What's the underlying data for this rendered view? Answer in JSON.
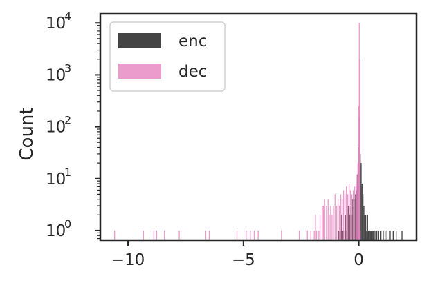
{
  "chart_data": {
    "type": "histogram",
    "title": "",
    "xlabel": "",
    "ylabel": "Count",
    "xscale": "linear",
    "yscale": "log",
    "xlim": [
      -11.2,
      2.5
    ],
    "ylim": [
      0.65,
      15000
    ],
    "x_ticks": [
      {
        "value": -10,
        "label": "−10"
      },
      {
        "value": -5,
        "label": "−5"
      },
      {
        "value": 0,
        "label": "0"
      }
    ],
    "y_ticks": [
      {
        "value": 1,
        "base": "10",
        "exp": "0"
      },
      {
        "value": 10,
        "base": "10",
        "exp": "1"
      },
      {
        "value": 100,
        "base": "10",
        "exp": "2"
      },
      {
        "value": 1000,
        "base": "10",
        "exp": "3"
      },
      {
        "value": 10000,
        "base": "10",
        "exp": "4"
      }
    ],
    "grid": false,
    "legend_position": "top-left",
    "bin_width": 0.04,
    "series": [
      {
        "name": "enc",
        "color": "#3a3a3a",
        "bins": [
          [
            -0.9,
            1
          ],
          [
            -0.85,
            1
          ],
          [
            -0.8,
            1
          ],
          [
            -0.76,
            2
          ],
          [
            -0.72,
            1
          ],
          [
            -0.68,
            1
          ],
          [
            -0.6,
            2
          ],
          [
            -0.56,
            1
          ],
          [
            -0.52,
            2
          ],
          [
            -0.48,
            3
          ],
          [
            -0.44,
            3
          ],
          [
            -0.4,
            2
          ],
          [
            -0.36,
            3
          ],
          [
            -0.32,
            2
          ],
          [
            -0.28,
            4
          ],
          [
            -0.24,
            3
          ],
          [
            -0.2,
            4
          ],
          [
            -0.16,
            5
          ],
          [
            -0.12,
            6
          ],
          [
            -0.08,
            12
          ],
          [
            -0.04,
            40
          ],
          [
            0.0,
            150
          ],
          [
            0.04,
            30
          ],
          [
            0.08,
            20
          ],
          [
            0.12,
            8
          ],
          [
            0.16,
            5
          ],
          [
            0.2,
            3
          ],
          [
            0.24,
            2
          ],
          [
            0.28,
            2
          ],
          [
            0.32,
            1
          ],
          [
            0.36,
            2
          ],
          [
            0.4,
            1
          ],
          [
            0.44,
            1
          ],
          [
            0.48,
            1
          ],
          [
            0.52,
            1
          ],
          [
            0.56,
            1
          ],
          [
            0.6,
            1
          ],
          [
            0.68,
            1
          ],
          [
            0.76,
            1
          ],
          [
            0.84,
            1
          ],
          [
            0.94,
            1
          ],
          [
            1.04,
            1
          ],
          [
            1.12,
            1
          ],
          [
            1.2,
            1
          ],
          [
            1.34,
            1
          ],
          [
            1.42,
            1
          ],
          [
            1.48,
            1
          ],
          [
            1.6,
            1
          ],
          [
            1.82,
            1
          ],
          [
            1.88,
            1
          ]
        ]
      },
      {
        "name": "dec",
        "color": "#e78ac3",
        "bins": [
          [
            -10.6,
            1
          ],
          [
            -9.35,
            1
          ],
          [
            -8.9,
            1
          ],
          [
            -8.78,
            1
          ],
          [
            -8.44,
            1
          ],
          [
            -7.8,
            1
          ],
          [
            -6.65,
            1
          ],
          [
            -6.5,
            1
          ],
          [
            -5.3,
            1
          ],
          [
            -4.9,
            1
          ],
          [
            -4.72,
            1
          ],
          [
            -4.55,
            1
          ],
          [
            -4.38,
            1
          ],
          [
            -3.37,
            1
          ],
          [
            -2.6,
            1
          ],
          [
            -2.25,
            1
          ],
          [
            -2.1,
            1
          ],
          [
            -1.95,
            1
          ],
          [
            -1.9,
            2
          ],
          [
            -1.85,
            1
          ],
          [
            -1.75,
            1
          ],
          [
            -1.7,
            2
          ],
          [
            -1.6,
            3
          ],
          [
            -1.55,
            3
          ],
          [
            -1.5,
            4
          ],
          [
            -1.42,
            3
          ],
          [
            -1.35,
            4
          ],
          [
            -1.3,
            2
          ],
          [
            -1.24,
            3
          ],
          [
            -1.18,
            2
          ],
          [
            -1.12,
            3
          ],
          [
            -1.05,
            5
          ],
          [
            -0.98,
            3
          ],
          [
            -0.92,
            4
          ],
          [
            -0.86,
            3
          ],
          [
            -0.8,
            5
          ],
          [
            -0.74,
            4
          ],
          [
            -0.68,
            6
          ],
          [
            -0.62,
            5
          ],
          [
            -0.56,
            7
          ],
          [
            -0.5,
            5
          ],
          [
            -0.44,
            8
          ],
          [
            -0.38,
            6
          ],
          [
            -0.32,
            5
          ],
          [
            -0.26,
            6
          ],
          [
            -0.2,
            7
          ],
          [
            -0.14,
            8
          ],
          [
            -0.1,
            12
          ],
          [
            -0.06,
            20
          ],
          [
            -0.02,
            250
          ],
          [
            0.0,
            10000
          ],
          [
            0.02,
            2000
          ],
          [
            0.04,
            1
          ]
        ]
      }
    ]
  }
}
